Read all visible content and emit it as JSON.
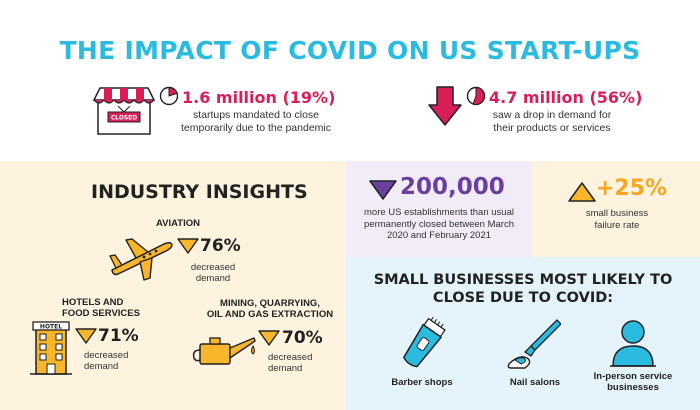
{
  "title": "THE IMPACT OF COVID ON US START-UPS",
  "top_stats": [
    {
      "value": "1.6 million (19%)",
      "desc_line1": "startups mandated to close",
      "desc_line2": "temporarily due to the pandemic",
      "icon_label": "CLOSED"
    },
    {
      "value": "4.7 million (56%)",
      "desc_line1": "saw a drop in demand for",
      "desc_line2": "their products or services"
    }
  ],
  "industry": {
    "heading": "INDUSTRY INSIGHTS",
    "aviation": {
      "label": "AVIATION",
      "value": "76%",
      "desc_line1": "decreased",
      "desc_line2": "demand"
    },
    "hotels": {
      "label_line1": "HOTELS AND",
      "label_line2": "FOOD SERVICES",
      "value": "71%",
      "desc_line1": "decreased",
      "desc_line2": "demand",
      "icon_label": "HOTEL"
    },
    "mining": {
      "label_line1": "MINING, QUARRYING,",
      "label_line2": "OIL AND GAS EXTRACTION",
      "value": "70%",
      "desc_line1": "decreased",
      "desc_line2": "demand"
    }
  },
  "establishments": {
    "value": "200,000",
    "desc_line1": "more US establishments than usual",
    "desc_line2": "permanently closed between March",
    "desc_line3": "2020 and February 2021"
  },
  "failure": {
    "value": "+25%",
    "desc_line1": "small business",
    "desc_line2": "failure rate"
  },
  "small_business": {
    "heading_line1": "SMALL BUSINESSES MOST LIKELY TO",
    "heading_line2": "CLOSE DUE TO COVID:",
    "items": [
      {
        "label_line1": "Barber shops",
        "label_line2": ""
      },
      {
        "label_line1": "Nail salons",
        "label_line2": ""
      },
      {
        "label_line1": "In-person service",
        "label_line2": "businesses"
      }
    ]
  },
  "colors": {
    "accent_blue": "#2bbbe0",
    "accent_red": "#d81f5a",
    "accent_purple": "#6b3fa0",
    "accent_yellow": "#f8b62a",
    "accent_orange": "#f5a623"
  }
}
